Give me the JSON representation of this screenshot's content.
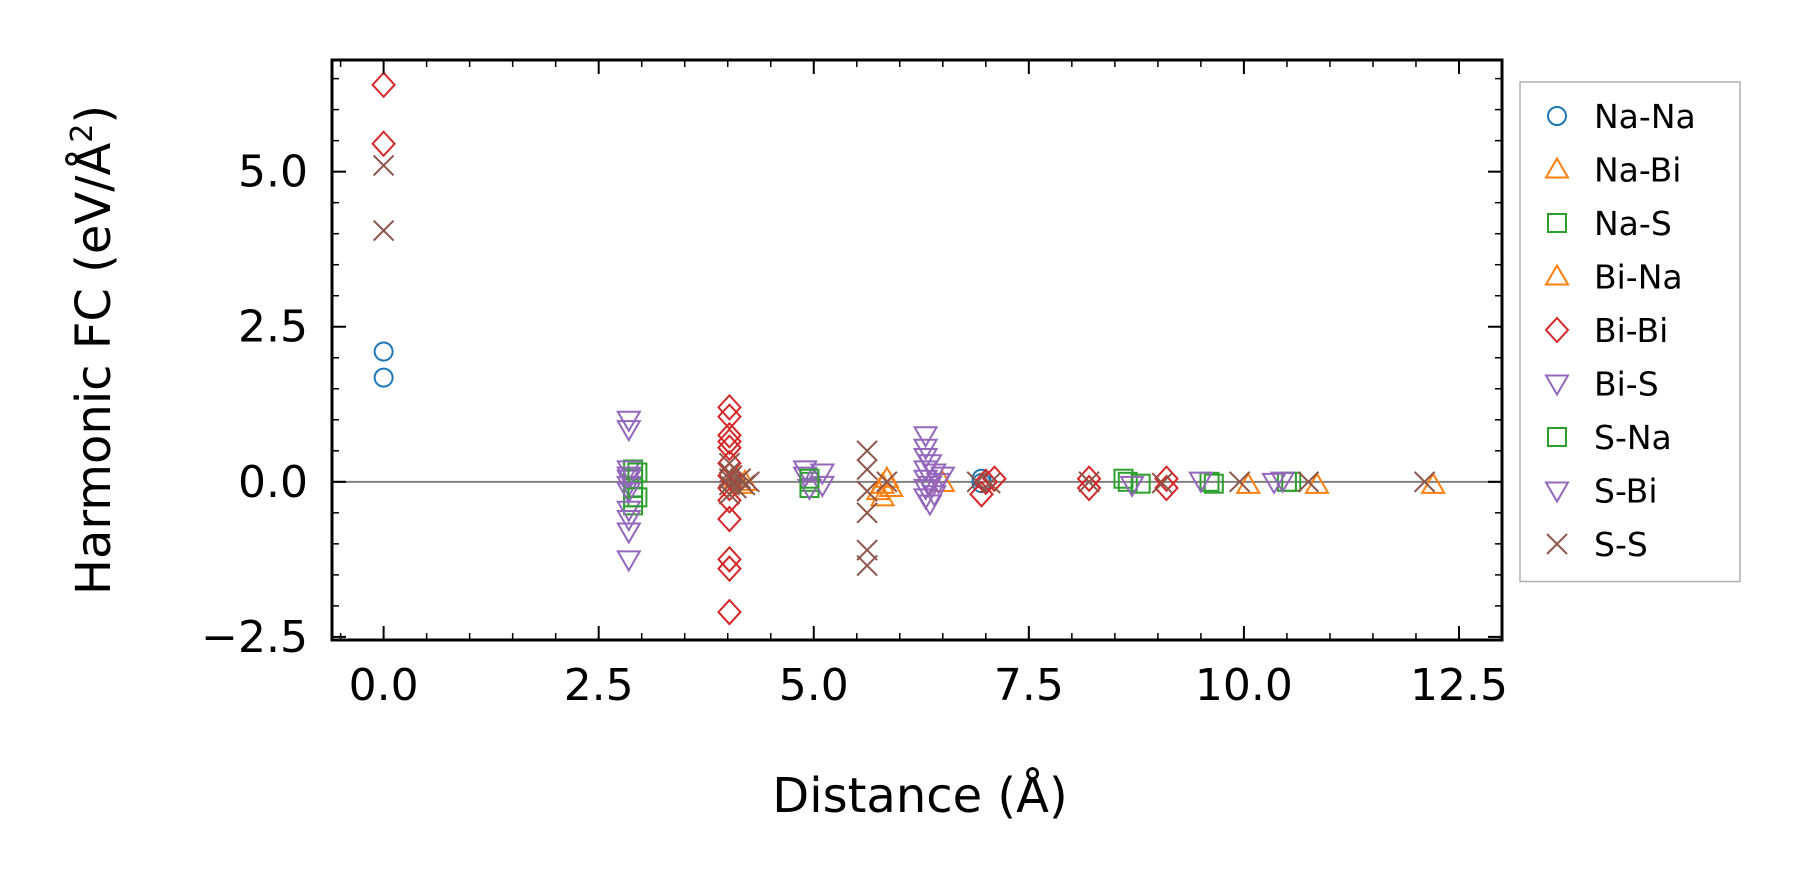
{
  "chart_data": {
    "type": "scatter",
    "title": "",
    "xlabel": "Distance (Å)",
    "ylabel": "Harmonic FC (eV/Å²)",
    "ylabel_main": "Harmonic FC (eV/Å",
    "ylabel_sup": "2",
    "ylabel_close": ")",
    "xlim": [
      -0.6,
      13.0
    ],
    "ylim": [
      -2.55,
      6.8
    ],
    "xticks": [
      0.0,
      2.5,
      5.0,
      7.5,
      10.0,
      12.5
    ],
    "xtick_labels": [
      "0.0",
      "2.5",
      "5.0",
      "7.5",
      "10.0",
      "12.5"
    ],
    "yticks": [
      -2.5,
      0.0,
      2.5,
      5.0
    ],
    "ytick_labels": [
      "−2.5",
      "0.0",
      "2.5",
      "5.0"
    ],
    "hline_y": 0.0,
    "legend_position": "outside-right",
    "series": [
      {
        "name": "Na-Na",
        "color": "#1f77b4",
        "marker": "circle",
        "points": [
          [
            0.0,
            2.1
          ],
          [
            0.0,
            1.68
          ],
          [
            6.95,
            0.05
          ],
          [
            6.95,
            -0.02
          ]
        ]
      },
      {
        "name": "Na-Bi",
        "color": "#ff7f0e",
        "marker": "triangle-up",
        "points": [
          [
            4.1,
            0.05
          ],
          [
            4.15,
            -0.05
          ],
          [
            5.8,
            -0.05
          ],
          [
            5.8,
            -0.25
          ],
          [
            5.85,
            0.05
          ],
          [
            10.05,
            -0.05
          ],
          [
            10.85,
            -0.05
          ],
          [
            12.2,
            -0.05
          ]
        ]
      },
      {
        "name": "Na-S",
        "color": "#2ca02c",
        "marker": "square",
        "points": [
          [
            2.9,
            0.2
          ],
          [
            2.9,
            0.05
          ],
          [
            2.9,
            -0.1
          ],
          [
            2.9,
            -0.25
          ],
          [
            2.9,
            -0.38
          ],
          [
            4.95,
            0.0
          ],
          [
            4.95,
            -0.1
          ],
          [
            8.6,
            0.05
          ],
          [
            8.8,
            -0.03
          ],
          [
            9.65,
            -0.03
          ],
          [
            10.5,
            0.0
          ]
        ]
      },
      {
        "name": "Bi-Na",
        "color": "#ff7f0e",
        "marker": "triangle-up",
        "points": [
          [
            4.2,
            0.0
          ],
          [
            5.75,
            -0.15
          ],
          [
            5.9,
            -0.1
          ],
          [
            6.5,
            -0.02
          ]
        ]
      },
      {
        "name": "Bi-Bi",
        "color": "#d62728",
        "marker": "diamond",
        "points": [
          [
            0.0,
            6.4
          ],
          [
            0.0,
            5.45
          ],
          [
            4.02,
            1.2
          ],
          [
            4.02,
            1.05
          ],
          [
            4.02,
            0.75
          ],
          [
            4.02,
            0.65
          ],
          [
            4.02,
            0.55
          ],
          [
            4.02,
            0.3
          ],
          [
            4.02,
            0.1
          ],
          [
            4.02,
            -0.1
          ],
          [
            4.02,
            -0.3
          ],
          [
            4.02,
            -0.6
          ],
          [
            4.02,
            -1.25
          ],
          [
            4.02,
            -1.4
          ],
          [
            4.02,
            -2.1
          ],
          [
            6.95,
            -0.2
          ],
          [
            7.0,
            0.0
          ],
          [
            7.1,
            0.05
          ],
          [
            8.2,
            0.05
          ],
          [
            8.2,
            -0.1
          ],
          [
            9.1,
            0.05
          ],
          [
            9.1,
            -0.1
          ]
        ]
      },
      {
        "name": "Bi-S",
        "color": "#9467bd",
        "marker": "triangle-down",
        "points": [
          [
            2.85,
            1.0
          ],
          [
            2.85,
            0.85
          ],
          [
            2.85,
            0.2
          ],
          [
            2.85,
            0.05
          ],
          [
            2.85,
            -0.05
          ],
          [
            2.85,
            -0.45
          ],
          [
            2.85,
            -0.6
          ],
          [
            2.85,
            -0.8
          ],
          [
            2.85,
            -1.25
          ],
          [
            4.9,
            0.2
          ],
          [
            4.9,
            0.1
          ],
          [
            4.95,
            -0.1
          ],
          [
            5.1,
            0.15
          ],
          [
            5.1,
            -0.05
          ],
          [
            6.3,
            0.75
          ],
          [
            6.3,
            0.55
          ],
          [
            6.3,
            0.4
          ],
          [
            6.3,
            0.2
          ],
          [
            6.3,
            0.05
          ],
          [
            6.3,
            -0.1
          ],
          [
            6.3,
            -0.25
          ],
          [
            6.35,
            -0.35
          ],
          [
            6.4,
            0.15
          ],
          [
            6.45,
            0.0
          ],
          [
            6.5,
            0.1
          ]
        ]
      },
      {
        "name": "S-Na",
        "color": "#2ca02c",
        "marker": "square",
        "points": [
          [
            2.95,
            0.15
          ],
          [
            2.95,
            -0.25
          ],
          [
            4.95,
            0.05
          ],
          [
            8.65,
            0.0
          ],
          [
            9.6,
            0.0
          ],
          [
            10.55,
            0.0
          ]
        ]
      },
      {
        "name": "S-Bi",
        "color": "#9467bd",
        "marker": "triangle-down",
        "points": [
          [
            2.85,
            0.1
          ],
          [
            2.85,
            -0.15
          ],
          [
            6.35,
            0.3
          ],
          [
            6.35,
            -0.05
          ],
          [
            6.4,
            -0.2
          ],
          [
            8.7,
            -0.05
          ],
          [
            9.5,
            0.02
          ],
          [
            10.35,
            0.0
          ],
          [
            10.45,
            0.02
          ]
        ]
      },
      {
        "name": "S-S",
        "color": "#8c564b",
        "marker": "x",
        "points": [
          [
            0.0,
            5.1
          ],
          [
            0.0,
            4.05
          ],
          [
            4.02,
            0.3
          ],
          [
            4.02,
            0.15
          ],
          [
            4.02,
            0.05
          ],
          [
            4.02,
            -0.05
          ],
          [
            4.02,
            -0.2
          ],
          [
            4.05,
            0.1
          ],
          [
            4.1,
            -0.1
          ],
          [
            4.15,
            0.05
          ],
          [
            4.2,
            -0.05
          ],
          [
            4.25,
            0.0
          ],
          [
            5.62,
            0.5
          ],
          [
            5.62,
            0.2
          ],
          [
            5.62,
            -0.15
          ],
          [
            5.62,
            -0.5
          ],
          [
            5.62,
            -1.1
          ],
          [
            5.62,
            -1.35
          ],
          [
            5.85,
            0.0
          ],
          [
            6.9,
            0.0
          ],
          [
            7.05,
            -0.02
          ],
          [
            8.2,
            0.0
          ],
          [
            9.05,
            -0.02
          ],
          [
            9.95,
            0.0
          ],
          [
            10.75,
            0.0
          ],
          [
            12.1,
            0.0
          ]
        ]
      }
    ]
  }
}
